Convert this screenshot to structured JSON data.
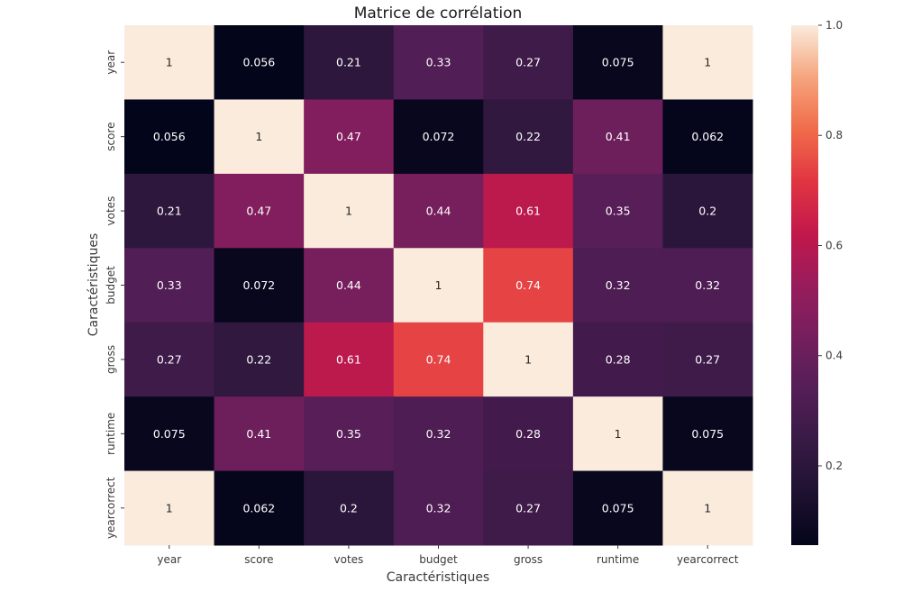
{
  "chart_data": {
    "type": "heatmap",
    "title": "Matrice de corrélation",
    "xlabel": "Caractéristiques",
    "ylabel": "Caractéristiques",
    "x_categories": [
      "year",
      "score",
      "votes",
      "budget",
      "gross",
      "runtime",
      "yearcorrect"
    ],
    "y_categories": [
      "year",
      "score",
      "votes",
      "budget",
      "gross",
      "runtime",
      "yearcorrect"
    ],
    "values": [
      [
        1,
        0.056,
        0.21,
        0.33,
        0.27,
        0.075,
        1
      ],
      [
        0.056,
        1,
        0.47,
        0.072,
        0.22,
        0.41,
        0.062
      ],
      [
        0.21,
        0.47,
        1,
        0.44,
        0.61,
        0.35,
        0.2
      ],
      [
        0.33,
        0.072,
        0.44,
        1,
        0.74,
        0.32,
        0.32
      ],
      [
        0.27,
        0.22,
        0.61,
        0.74,
        1,
        0.28,
        0.27
      ],
      [
        0.075,
        0.41,
        0.35,
        0.32,
        0.28,
        1,
        0.075
      ],
      [
        1,
        0.062,
        0.2,
        0.32,
        0.27,
        0.075,
        1
      ]
    ],
    "annotations": [
      [
        "1",
        "0.056",
        "0.21",
        "0.33",
        "0.27",
        "0.075",
        "1"
      ],
      [
        "0.056",
        "1",
        "0.47",
        "0.072",
        "0.22",
        "0.41",
        "0.062"
      ],
      [
        "0.21",
        "0.47",
        "1",
        "0.44",
        "0.61",
        "0.35",
        "0.2"
      ],
      [
        "0.33",
        "0.072",
        "0.44",
        "1",
        "0.74",
        "0.32",
        "0.32"
      ],
      [
        "0.27",
        "0.22",
        "0.61",
        "0.74",
        "1",
        "0.28",
        "0.27"
      ],
      [
        "0.075",
        "0.41",
        "0.35",
        "0.32",
        "0.28",
        "1",
        "0.075"
      ],
      [
        "1",
        "0.062",
        "0.2",
        "0.32",
        "0.27",
        "0.075",
        "1"
      ]
    ],
    "colormap": "rocket",
    "vmin": 0.056,
    "vmax": 1.0,
    "colorbar": {
      "ticks": [
        0.2,
        0.4,
        0.6,
        0.8,
        1.0
      ],
      "tick_labels": [
        "0.2",
        "0.4",
        "0.6",
        "0.8",
        "1.0"
      ],
      "position": "right"
    },
    "grid": false
  }
}
